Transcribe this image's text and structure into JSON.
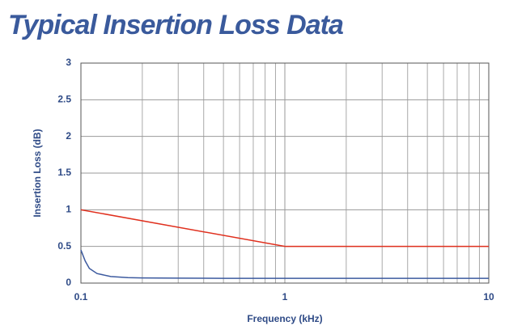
{
  "chart_data": {
    "type": "line",
    "title": "Typical Insertion Loss Data",
    "xlabel": "Frequency (kHz)",
    "ylabel": "Insertion Loss (dB)",
    "xscale": "log",
    "xlim": [
      0.1,
      10
    ],
    "xticks": [
      0.1,
      1,
      10
    ],
    "x_minor_grid": [
      0.2,
      0.3,
      0.4,
      0.5,
      0.6,
      0.7,
      0.8,
      0.9,
      2,
      3,
      4,
      5,
      6,
      7,
      8,
      9
    ],
    "ylim": [
      0,
      3
    ],
    "yticks": [
      0,
      0.5,
      1,
      1.5,
      2,
      2.5,
      3
    ],
    "grid": true,
    "series": [
      {
        "color": "#e0301e",
        "x": [
          0.1,
          1,
          10
        ],
        "values": [
          1,
          0.5,
          0.5
        ]
      },
      {
        "color": "#3c5a9f",
        "x": [
          0.1,
          0.105,
          0.11,
          0.12,
          0.14,
          0.17,
          0.2,
          0.3,
          0.5,
          1,
          2,
          5,
          10
        ],
        "values": [
          0.45,
          0.3,
          0.2,
          0.13,
          0.09,
          0.075,
          0.07,
          0.067,
          0.065,
          0.065,
          0.065,
          0.065,
          0.065
        ]
      }
    ]
  }
}
